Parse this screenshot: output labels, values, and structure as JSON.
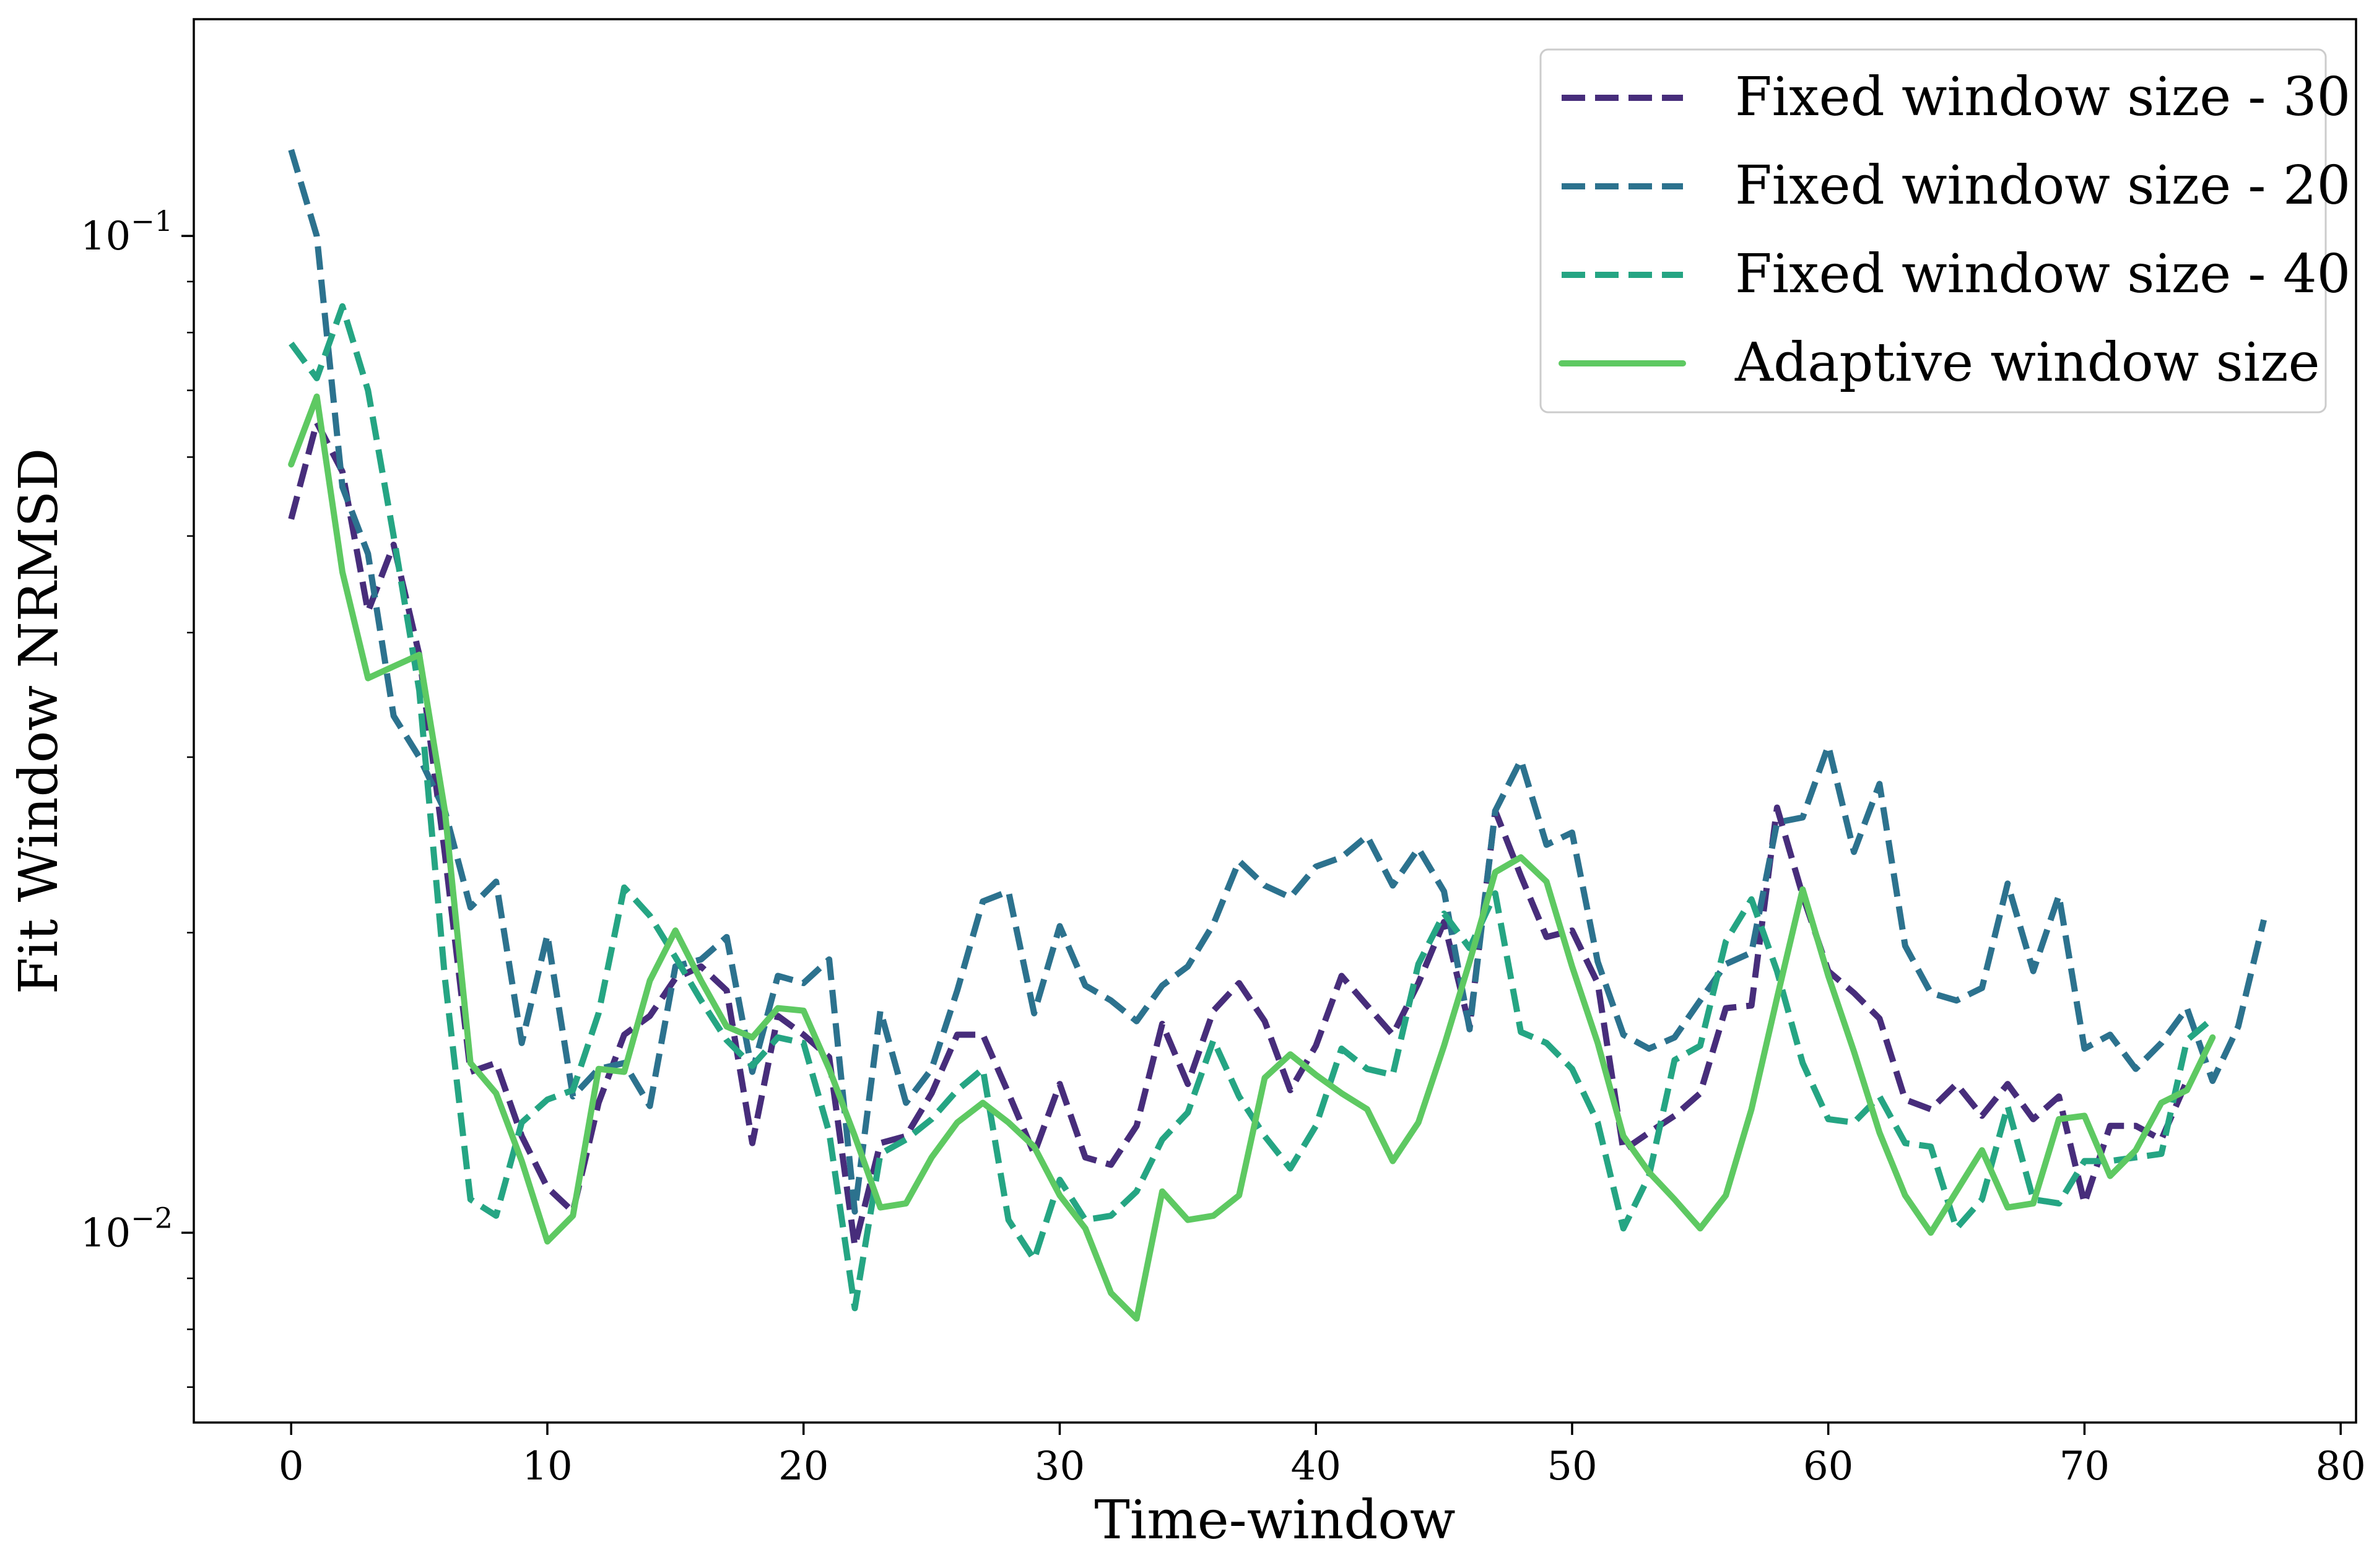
{
  "chart_data": {
    "type": "line",
    "xlabel": "Time-window",
    "ylabel": "Fit Window NRMSD",
    "xlim": [
      -3.8,
      80.6
    ],
    "ylim": [
      0.00645,
      0.165
    ],
    "yscale": "log",
    "grid": false,
    "legend_position": "top-right",
    "x_ticks": [
      0,
      10,
      20,
      30,
      40,
      50,
      60,
      70,
      80
    ],
    "y_ticks": [
      {
        "value": 0.1,
        "base": "10",
        "exp": "−1"
      },
      {
        "value": 0.01,
        "base": "10",
        "exp": "−2"
      }
    ],
    "series": [
      {
        "name": "Fixed window size - 30",
        "color": "#472d7b",
        "dash": "dashed",
        "values": [
          0.052,
          0.065,
          0.058,
          0.042,
          0.049,
          0.038,
          0.024,
          0.0145,
          0.0148,
          0.0125,
          0.0111,
          0.0105,
          0.0135,
          0.0158,
          0.0165,
          0.018,
          0.0185,
          0.0175,
          0.0123,
          0.0165,
          0.0158,
          0.015,
          0.0097,
          0.0123,
          0.0125,
          0.0138,
          0.0158,
          0.0158,
          0.0138,
          0.012,
          0.0141,
          0.0119,
          0.0117,
          0.0128,
          0.0162,
          0.0141,
          0.0167,
          0.0178,
          0.0163,
          0.0139,
          0.0154,
          0.0181,
          0.0169,
          0.0158,
          0.0178,
          0.0205,
          0.0161,
          0.0265,
          0.0228,
          0.0198,
          0.0201,
          0.0178,
          0.0121,
          0.0126,
          0.0131,
          0.0138,
          0.0168,
          0.0169,
          0.0267,
          0.0218,
          0.0183,
          0.0174,
          0.0164,
          0.0136,
          0.0133,
          0.0141,
          0.0131,
          0.0141,
          0.013,
          0.0137,
          0.0107,
          0.0128,
          0.0128,
          0.0124,
          0.0142
        ]
      },
      {
        "name": "Fixed window size - 20",
        "color": "#2c728e",
        "dash": "dashed",
        "values": [
          0.122,
          0.1,
          0.056,
          0.048,
          0.033,
          0.03,
          0.0265,
          0.0212,
          0.0225,
          0.0155,
          0.0199,
          0.0137,
          0.0146,
          0.0148,
          0.0134,
          0.0185,
          0.0188,
          0.0198,
          0.0145,
          0.0181,
          0.0178,
          0.0188,
          0.0105,
          0.0167,
          0.0135,
          0.0146,
          0.0175,
          0.0215,
          0.022,
          0.0166,
          0.0203,
          0.0177,
          0.0171,
          0.0163,
          0.0177,
          0.0185,
          0.0204,
          0.0236,
          0.0223,
          0.0217,
          0.0233,
          0.0238,
          0.025,
          0.0223,
          0.0243,
          0.022,
          0.016,
          0.0265,
          0.0298,
          0.0245,
          0.0252,
          0.0187,
          0.0158,
          0.0153,
          0.0157,
          0.0171,
          0.0186,
          0.0191,
          0.0258,
          0.0261,
          0.0308,
          0.0241,
          0.0282,
          0.0194,
          0.0174,
          0.0171,
          0.0176,
          0.0224,
          0.0183,
          0.0218,
          0.0153,
          0.0158,
          0.0146,
          0.0155,
          0.0168,
          0.0142,
          0.0161,
          0.0206
        ]
      },
      {
        "name": "Fixed window size - 40",
        "color": "#25a583",
        "dash": "dashed",
        "values": [
          0.078,
          0.072,
          0.085,
          0.07,
          0.05,
          0.035,
          0.018,
          0.0108,
          0.0104,
          0.0129,
          0.0136,
          0.0139,
          0.0166,
          0.0222,
          0.0208,
          0.0189,
          0.0171,
          0.0156,
          0.0147,
          0.0157,
          0.0155,
          0.0126,
          0.0084,
          0.012,
          0.0124,
          0.013,
          0.0139,
          0.0146,
          0.0103,
          0.0094,
          0.0113,
          0.0103,
          0.0104,
          0.011,
          0.0124,
          0.0132,
          0.0156,
          0.0137,
          0.0125,
          0.0116,
          0.0128,
          0.0153,
          0.0146,
          0.0144,
          0.0186,
          0.0209,
          0.0193,
          0.0219,
          0.0159,
          0.0155,
          0.0146,
          0.0129,
          0.0101,
          0.0114,
          0.0149,
          0.0154,
          0.0196,
          0.0216,
          0.0183,
          0.0148,
          0.013,
          0.0129,
          0.0137,
          0.0123,
          0.0122,
          0.0101,
          0.0108,
          0.0134,
          0.0108,
          0.0107,
          0.0118,
          0.0118,
          0.0119,
          0.012,
          0.0156,
          0.0164
        ]
      },
      {
        "name": "Adaptive window size",
        "color": "#5ec962",
        "dash": "solid",
        "values": [
          0.059,
          0.069,
          0.046,
          0.036,
          0.037,
          0.038,
          0.0265,
          0.0148,
          0.0138,
          0.0118,
          0.0098,
          0.0104,
          0.0146,
          0.0145,
          0.0179,
          0.0201,
          0.0179,
          0.0161,
          0.0157,
          0.0168,
          0.0167,
          0.0146,
          0.0125,
          0.0106,
          0.0107,
          0.0119,
          0.0129,
          0.0135,
          0.0129,
          0.0122,
          0.0109,
          0.0101,
          0.0087,
          0.0082,
          0.011,
          0.0103,
          0.0104,
          0.0109,
          0.0143,
          0.0151,
          0.0144,
          0.0138,
          0.0133,
          0.0118,
          0.0129,
          0.0154,
          0.0187,
          0.023,
          0.0238,
          0.0225,
          0.0185,
          0.0155,
          0.0125,
          0.0115,
          0.0108,
          0.0101,
          0.0109,
          0.0133,
          0.0172,
          0.0221,
          0.0181,
          0.0152,
          0.0126,
          0.0109,
          0.01,
          0.011,
          0.0121,
          0.0106,
          0.0107,
          0.013,
          0.0131,
          0.0114,
          0.0121,
          0.0135,
          0.0139,
          0.0157
        ]
      }
    ]
  }
}
